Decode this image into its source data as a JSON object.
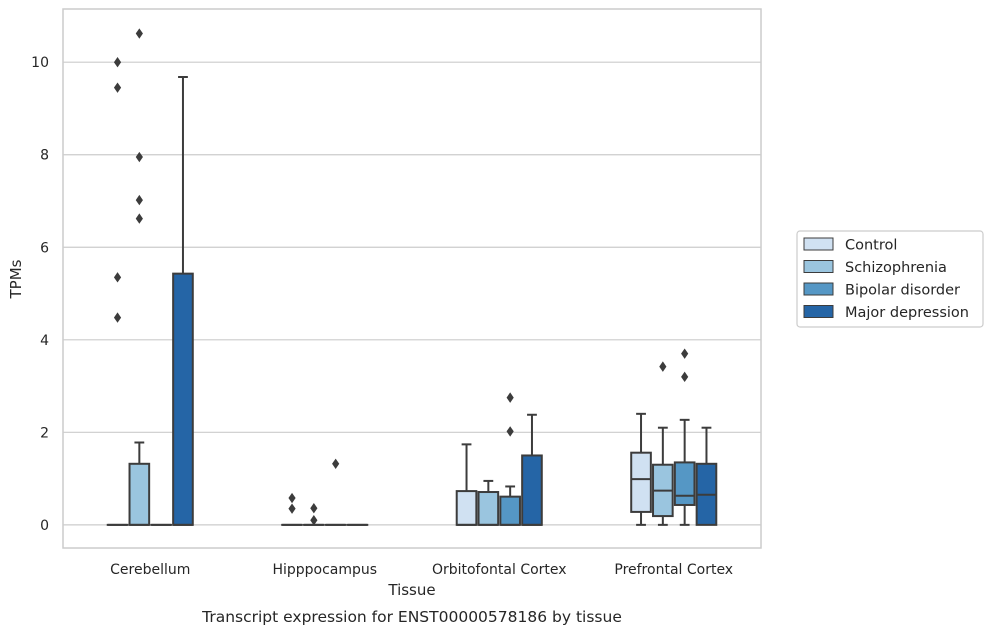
{
  "chart_data": {
    "type": "box",
    "caption": "Transcript expression for ENST00000578186 by tissue",
    "xlabel": "Tissue",
    "ylabel": "TPMs",
    "ylim": [
      -0.5,
      11.15
    ],
    "yticks": [
      0,
      2,
      4,
      6,
      8,
      10
    ],
    "ytick_labels": [
      "0",
      "2",
      "4",
      "6",
      "8",
      "10"
    ],
    "grid": "horizontal",
    "legend_position": "right",
    "categories": [
      "Cerebellum",
      "Hipppocampus",
      "Orbitofontal Cortex",
      "Prefrontal Cortex"
    ],
    "series": [
      {
        "name": "Control",
        "color": "#d0e1f2"
      },
      {
        "name": "Schizophrenia",
        "color": "#9ac5df"
      },
      {
        "name": "Bipolar disorder",
        "color": "#5597c5"
      },
      {
        "name": "Major depression",
        "color": "#2565a6"
      }
    ],
    "boxes": [
      {
        "category": "Cerebellum",
        "series": "Control",
        "q1": 0,
        "median": 0,
        "q3": 0,
        "whisker_low": 0,
        "whisker_high": 0,
        "outliers": [
          4.48,
          5.35,
          9.45,
          10.0
        ]
      },
      {
        "category": "Cerebellum",
        "series": "Schizophrenia",
        "q1": 0,
        "median": 0,
        "q3": 1.32,
        "whisker_low": 0,
        "whisker_high": 1.78,
        "outliers": [
          6.62,
          7.02,
          7.95,
          10.62
        ]
      },
      {
        "category": "Cerebellum",
        "series": "Bipolar disorder",
        "q1": 0,
        "median": 0,
        "q3": 0,
        "whisker_low": 0,
        "whisker_high": 0,
        "outliers": []
      },
      {
        "category": "Cerebellum",
        "series": "Major depression",
        "q1": 0,
        "median": 0,
        "q3": 5.43,
        "whisker_low": 0,
        "whisker_high": 9.68,
        "outliers": []
      },
      {
        "category": "Hipppocampus",
        "series": "Control",
        "q1": 0,
        "median": 0,
        "q3": 0,
        "whisker_low": 0,
        "whisker_high": 0,
        "outliers": [
          0.35,
          0.58
        ]
      },
      {
        "category": "Hipppocampus",
        "series": "Schizophrenia",
        "q1": 0,
        "median": 0,
        "q3": 0,
        "whisker_low": 0,
        "whisker_high": 0,
        "outliers": [
          0.1,
          0.36
        ]
      },
      {
        "category": "Hipppocampus",
        "series": "Bipolar disorder",
        "q1": 0,
        "median": 0,
        "q3": 0,
        "whisker_low": 0,
        "whisker_high": 0,
        "outliers": [
          1.32
        ]
      },
      {
        "category": "Hipppocampus",
        "series": "Major depression",
        "q1": 0,
        "median": 0,
        "q3": 0,
        "whisker_low": 0,
        "whisker_high": 0,
        "outliers": []
      },
      {
        "category": "Orbitofontal Cortex",
        "series": "Control",
        "q1": 0,
        "median": 0,
        "q3": 0.73,
        "whisker_low": 0,
        "whisker_high": 1.74,
        "outliers": []
      },
      {
        "category": "Orbitofontal Cortex",
        "series": "Schizophrenia",
        "q1": 0,
        "median": 0,
        "q3": 0.71,
        "whisker_low": 0,
        "whisker_high": 0.95,
        "outliers": []
      },
      {
        "category": "Orbitofontal Cortex",
        "series": "Bipolar disorder",
        "q1": 0,
        "median": 0,
        "q3": 0.61,
        "whisker_low": 0,
        "whisker_high": 0.83,
        "outliers": [
          2.02,
          2.75
        ]
      },
      {
        "category": "Orbitofontal Cortex",
        "series": "Major depression",
        "q1": 0,
        "median": 0,
        "q3": 1.5,
        "whisker_low": 0,
        "whisker_high": 2.38,
        "outliers": []
      },
      {
        "category": "Prefrontal Cortex",
        "series": "Control",
        "q1": 0.28,
        "median": 0.99,
        "q3": 1.56,
        "whisker_low": 0,
        "whisker_high": 2.4,
        "outliers": []
      },
      {
        "category": "Prefrontal Cortex",
        "series": "Schizophrenia",
        "q1": 0.19,
        "median": 0.74,
        "q3": 1.3,
        "whisker_low": 0,
        "whisker_high": 2.1,
        "outliers": [
          3.42
        ]
      },
      {
        "category": "Prefrontal Cortex",
        "series": "Bipolar disorder",
        "q1": 0.43,
        "median": 0.63,
        "q3": 1.35,
        "whisker_low": 0,
        "whisker_high": 2.27,
        "outliers": [
          3.2,
          3.7
        ]
      },
      {
        "category": "Prefrontal Cortex",
        "series": "Major depression",
        "q1": 0,
        "median": 0.65,
        "q3": 1.32,
        "whisker_low": 0,
        "whisker_high": 2.1,
        "outliers": []
      }
    ]
  }
}
